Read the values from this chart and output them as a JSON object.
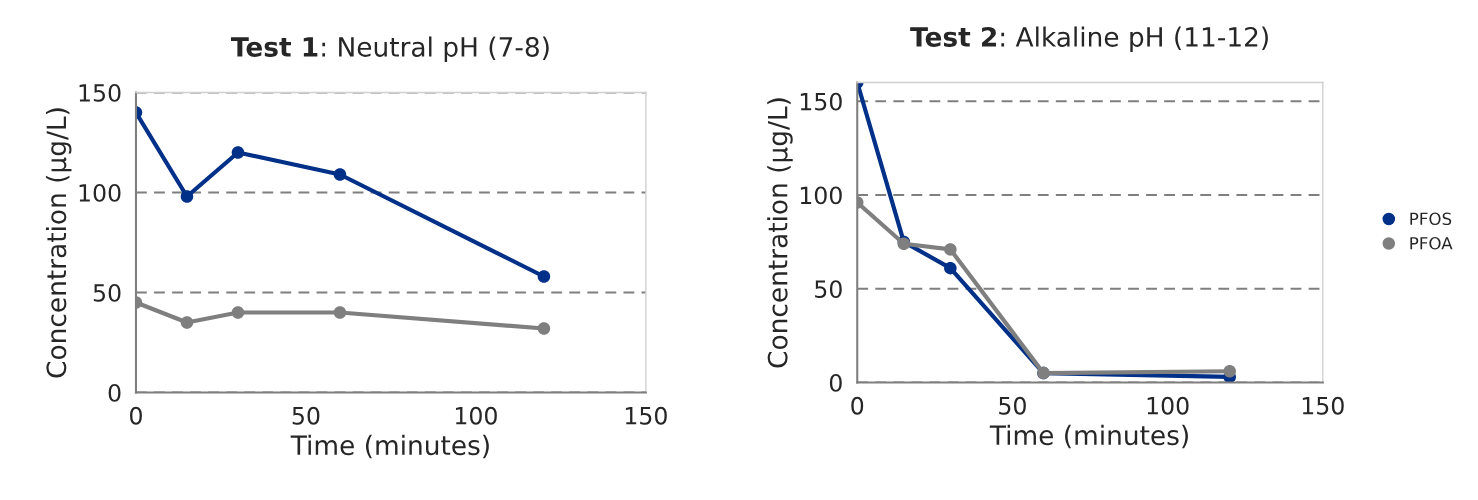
{
  "chart_data": [
    {
      "type": "line",
      "title": "Test 1: Neutral pH (7-8)",
      "xlabel": "Time (minutes)",
      "ylabel": "Concentration (µg/L)",
      "x": [
        0,
        15,
        30,
        60,
        120
      ],
      "series": [
        {
          "color": "#003087",
          "values": [
            140,
            98,
            120,
            109,
            58
          ]
        },
        {
          "color": "#7f7f7f",
          "values": [
            45,
            35,
            40,
            40,
            32
          ]
        }
      ],
      "xlim": [
        0,
        150
      ],
      "xticks": [
        0,
        50,
        100,
        150
      ],
      "ylim": [
        0,
        150
      ],
      "yticks": [
        0,
        50,
        100,
        150
      ],
      "grid": "y",
      "marker": "circle",
      "line_style": "solid"
    },
    {
      "type": "line",
      "title": "Test 2: Alkaline pH (11-12)",
      "xlabel": "Time (minutes)",
      "ylabel": "Concentration (µg/L)",
      "x": [
        0,
        15,
        30,
        60,
        120
      ],
      "series": [
        {
          "name": "PFOS",
          "color": "#003087",
          "values": [
            160,
            75,
            61,
            5,
            3
          ]
        },
        {
          "name": "PFOA",
          "color": "#7f7f7f",
          "values": [
            96,
            74,
            71,
            5,
            6
          ]
        }
      ],
      "xlim": [
        0,
        150
      ],
      "xticks": [
        0,
        50,
        100,
        150
      ],
      "ylim": [
        0,
        160
      ],
      "yticks": [
        0,
        50,
        100,
        150
      ],
      "grid": "y",
      "marker": "circle",
      "line_style": "solid",
      "legend": "right"
    }
  ]
}
